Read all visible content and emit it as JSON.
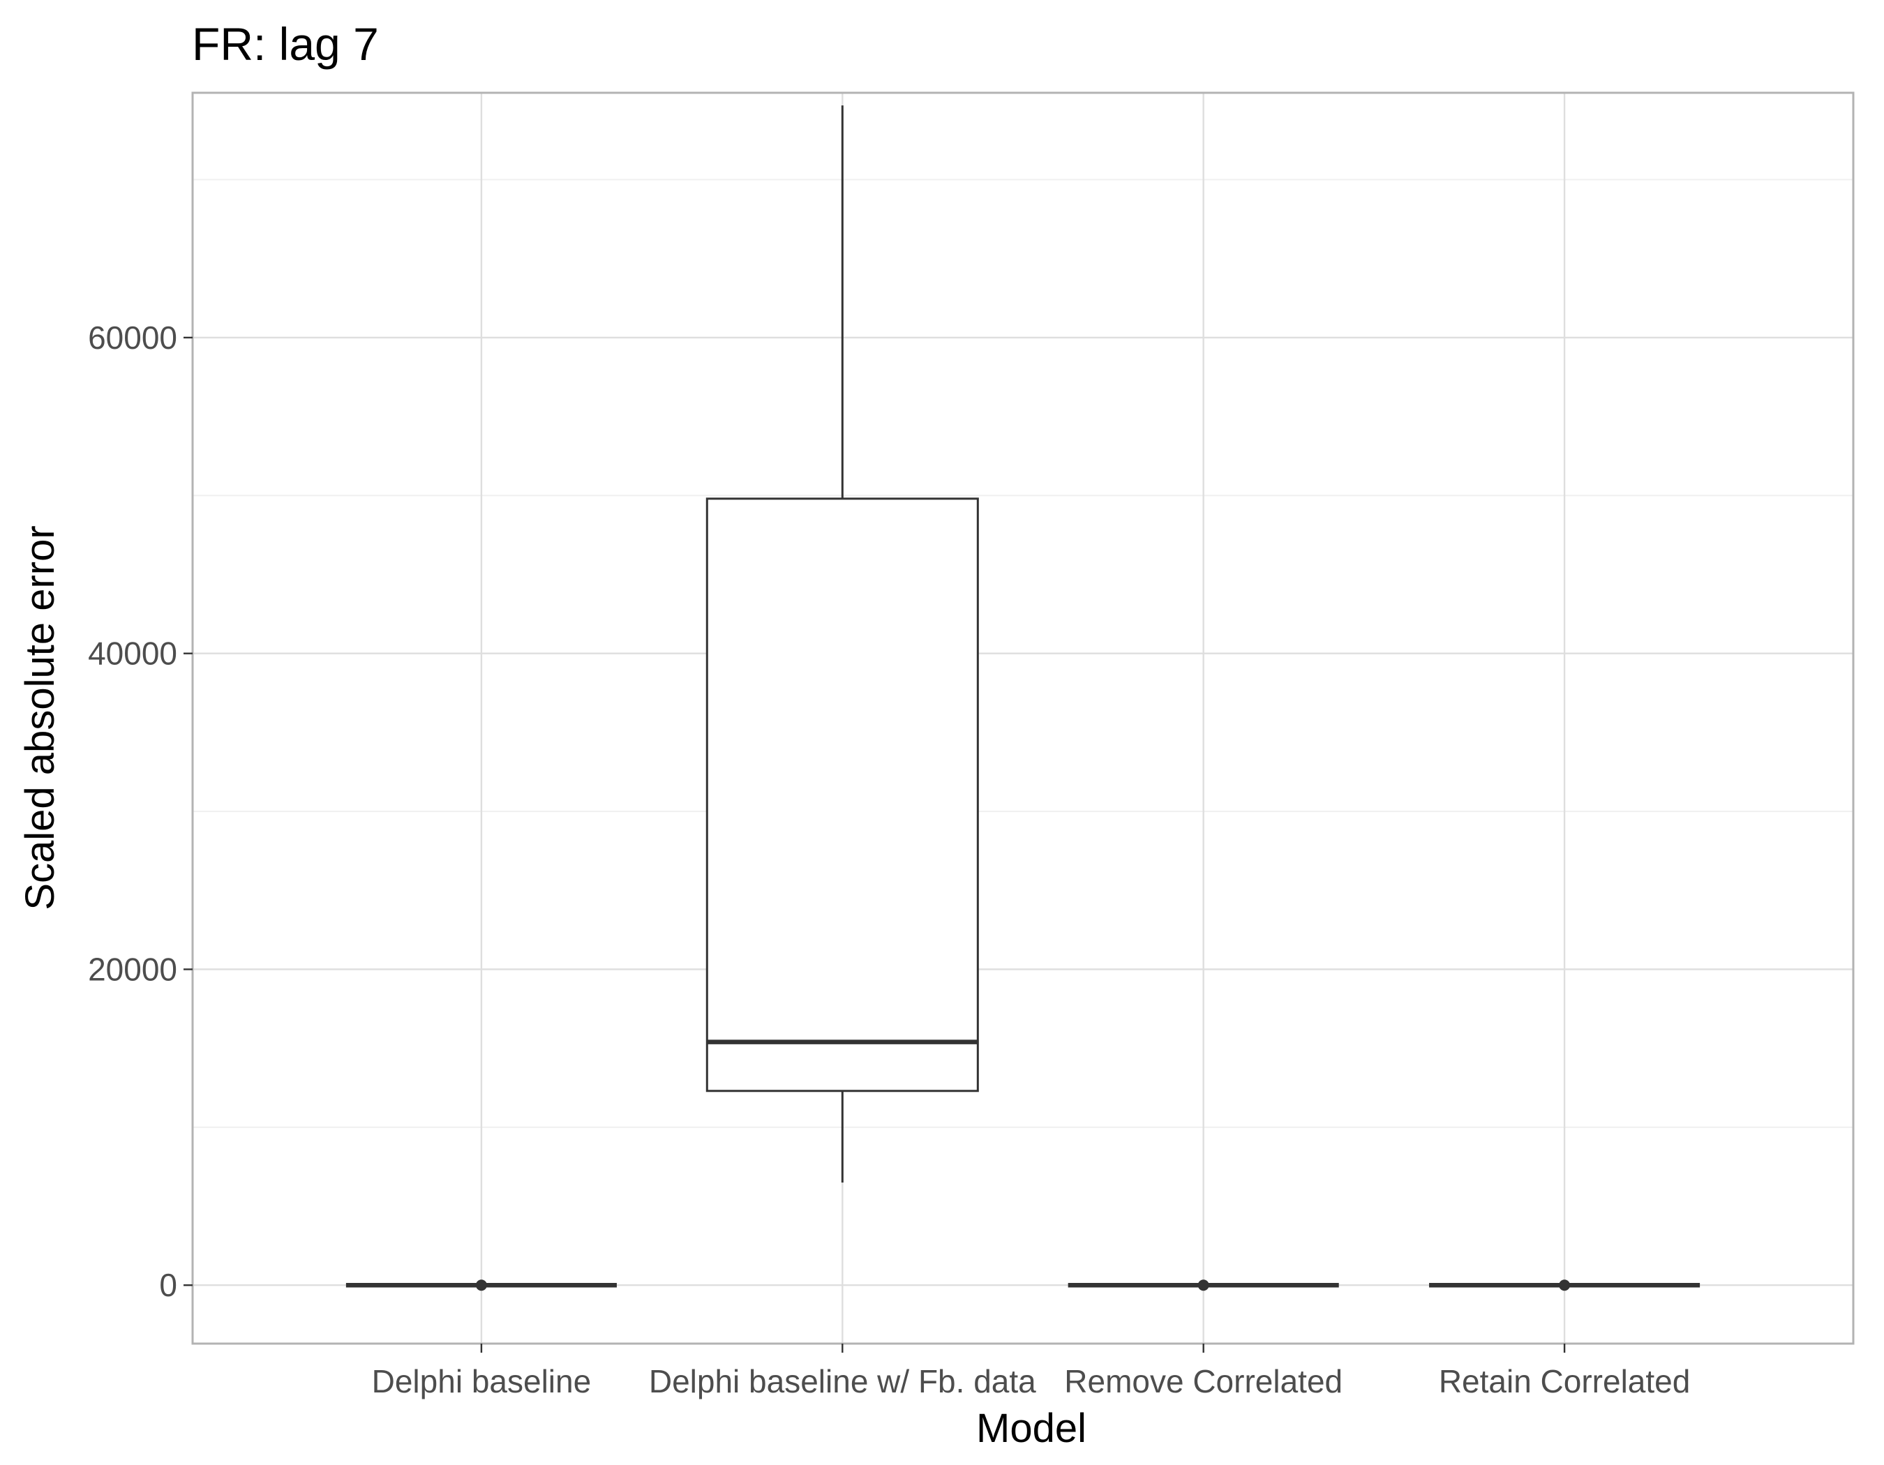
{
  "chart_data": {
    "type": "boxplot",
    "title": "FR: lag 7",
    "xlabel": "Model",
    "ylabel": "Scaled absolute error",
    "categories": [
      "Delphi baseline",
      "Delphi baseline w/ Fb. data",
      "Remove Correlated",
      "Retain Correlated"
    ],
    "ylim": [
      -3700,
      75500
    ],
    "y_ticks": [
      0,
      20000,
      40000,
      60000
    ],
    "y_tick_labels": [
      "0",
      "20000",
      "40000",
      "60000"
    ],
    "grid": true,
    "boxes": [
      {
        "category": "Delphi baseline",
        "min": 0,
        "q1": 0,
        "median": 0,
        "q3": 0,
        "max": 0,
        "outliers": [
          0
        ]
      },
      {
        "category": "Delphi baseline w/ Fb. data",
        "min": 6500,
        "q1": 12300,
        "median": 15400,
        "q3": 49800,
        "max": 74700,
        "outliers": []
      },
      {
        "category": "Remove Correlated",
        "min": 0,
        "q1": 0,
        "median": 0,
        "q3": 0,
        "max": 0,
        "outliers": [
          0
        ]
      },
      {
        "category": "Retain Correlated",
        "min": 0,
        "q1": 0,
        "median": 0,
        "q3": 0,
        "max": 0,
        "outliers": [
          0
        ]
      }
    ]
  }
}
